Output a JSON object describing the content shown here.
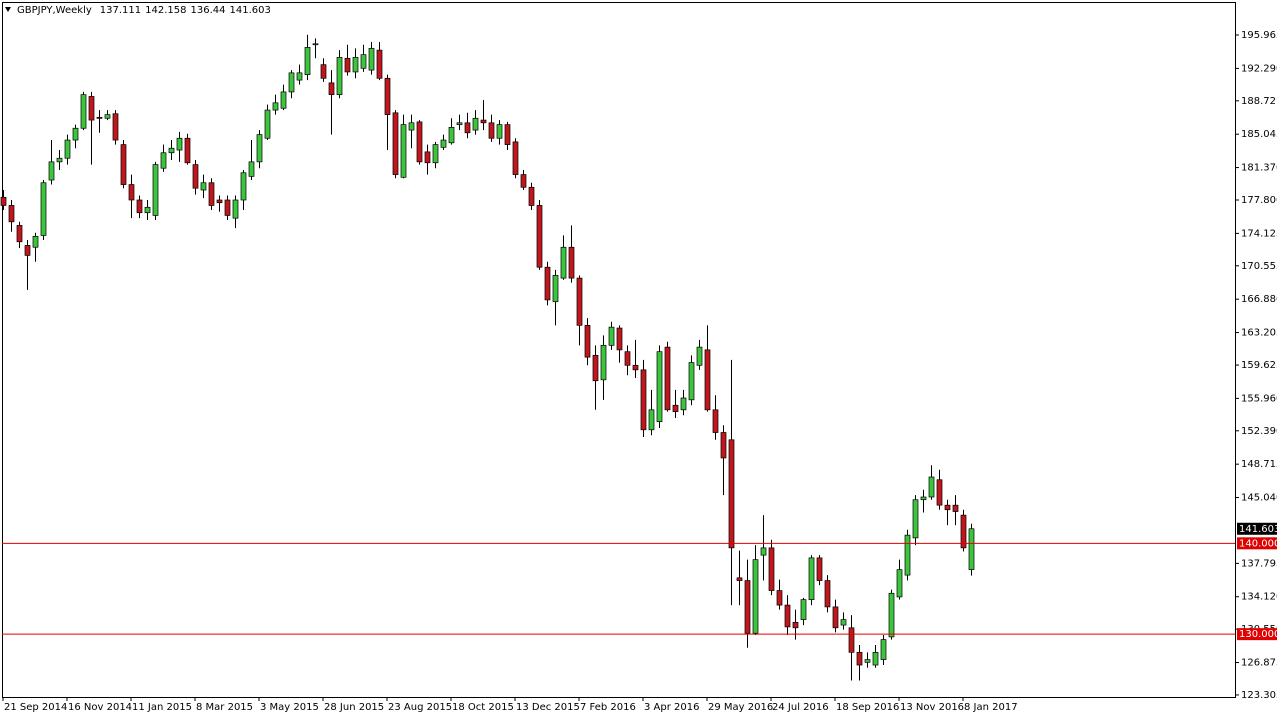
{
  "chart_data": {
    "type": "candlestick",
    "title": "GBPJPY,Weekly",
    "categories": [
      "21 Sep 2014",
      null,
      null,
      null,
      null,
      null,
      null,
      null,
      "16 Nov 2014",
      null,
      null,
      null,
      null,
      null,
      null,
      null,
      "11 Jan 2015",
      null,
      null,
      null,
      null,
      null,
      null,
      null,
      "8 Mar 2015",
      null,
      null,
      null,
      null,
      null,
      null,
      null,
      "3 May 2015",
      null,
      null,
      null,
      null,
      null,
      null,
      null,
      "28 Jun 2015",
      null,
      null,
      null,
      null,
      null,
      null,
      null,
      "23 Aug 2015",
      null,
      null,
      null,
      null,
      null,
      null,
      null,
      "18 Oct 2015",
      null,
      null,
      null,
      null,
      null,
      null,
      null,
      "13 Dec 2015",
      null,
      null,
      null,
      null,
      null,
      null,
      null,
      "7 Feb 2016",
      null,
      null,
      null,
      null,
      null,
      null,
      null,
      "3 Apr 2016",
      null,
      null,
      null,
      null,
      null,
      null,
      null,
      "29 May 2016",
      null,
      null,
      null,
      null,
      null,
      null,
      null,
      "24 Jul 2016",
      null,
      null,
      null,
      null,
      null,
      null,
      null,
      "18 Sep 2016",
      null,
      null,
      null,
      null,
      null,
      null,
      null,
      "13 Nov 2016",
      null,
      null,
      null,
      null,
      null,
      null,
      null,
      "8 Jan 2017",
      null
    ],
    "open": [
      178.1,
      177.2,
      175.0,
      172.8,
      172.6,
      173.9,
      180.0,
      182.0,
      182.4,
      184.4,
      185.7,
      189.2,
      186.9,
      186.8,
      187.3,
      183.9,
      179.5,
      177.8,
      176.4,
      176.1,
      181.3,
      183.0,
      183.3,
      184.6,
      181.7,
      178.9,
      179.7,
      177.8,
      177.8,
      175.8,
      177.8,
      180.4,
      182.0,
      184.6,
      187.7,
      187.9,
      189.7,
      191.0,
      191.6,
      194.9,
      192.7,
      190.7,
      189.4,
      193.4,
      191.9,
      192.3,
      192.1,
      194.3,
      191.2,
      187.4,
      180.3,
      185.5,
      186.4,
      183.1,
      181.9,
      183.6,
      184.1,
      186.1,
      186.3,
      185.5,
      186.6,
      186.3,
      184.6,
      186.1,
      184.2,
      180.6,
      179.2,
      177.2,
      170.4,
      166.6,
      169.2,
      172.6,
      169.2,
      164.0,
      160.7,
      158.0,
      161.8,
      163.7,
      161.1,
      159.6,
      159.1,
      152.5,
      153.4,
      161.6,
      155.2,
      154.7,
      155.8,
      159.6,
      161.3,
      154.7,
      152.2,
      151.4,
      136.2,
      135.9,
      130.1,
      138.7,
      139.5,
      134.8,
      133.2,
      131.3,
      131.6,
      133.8,
      138.4,
      135.9,
      133.0,
      131.0,
      130.7,
      128.0,
      126.9,
      126.6,
      127.2,
      129.7,
      134.1,
      136.5,
      140.6,
      144.8,
      145.1,
      147.0,
      144.2,
      144.2,
      143.1,
      137.111
    ],
    "high": [
      178.9,
      177.8,
      175.4,
      173.4,
      174.2,
      180.0,
      184.4,
      183.3,
      185.0,
      186.1,
      189.7,
      189.7,
      187.7,
      187.7,
      187.7,
      184.4,
      180.6,
      178.3,
      177.8,
      182.0,
      183.9,
      184.4,
      185.3,
      185.1,
      182.2,
      180.6,
      180.2,
      178.3,
      178.3,
      178.3,
      181.1,
      184.4,
      185.5,
      188.3,
      189.4,
      190.5,
      192.1,
      192.7,
      196.0,
      195.6,
      193.4,
      192.1,
      194.3,
      194.9,
      194.5,
      194.9,
      195.2,
      195.2,
      191.6,
      187.7,
      187.2,
      187.2,
      186.6,
      183.9,
      184.2,
      185.0,
      186.8,
      187.2,
      187.4,
      187.7,
      188.8,
      187.2,
      186.6,
      186.4,
      184.6,
      181.1,
      179.7,
      177.8,
      171.0,
      170.1,
      173.9,
      175.0,
      169.5,
      164.8,
      161.8,
      162.9,
      164.4,
      164.0,
      161.8,
      162.4,
      160.2,
      156.9,
      161.8,
      162.2,
      156.9,
      156.9,
      160.7,
      162.4,
      164.0,
      156.3,
      153.0,
      160.2,
      139.2,
      138.2,
      139.8,
      143.1,
      140.4,
      136.0,
      134.3,
      132.7,
      134.0,
      138.7,
      138.7,
      136.5,
      133.8,
      132.4,
      132.1,
      128.8,
      128.0,
      128.8,
      129.9,
      134.9,
      138.2,
      141.5,
      145.3,
      145.9,
      148.6,
      148.1,
      144.8,
      145.3,
      143.7,
      142.158
    ],
    "low": [
      176.7,
      174.3,
      172.5,
      167.9,
      171.0,
      173.4,
      179.5,
      181.1,
      181.7,
      183.5,
      185.5,
      181.7,
      185.2,
      186.6,
      183.9,
      179.1,
      175.8,
      175.8,
      175.6,
      175.6,
      180.9,
      182.2,
      182.0,
      181.7,
      178.4,
      178.0,
      176.7,
      176.5,
      175.6,
      174.7,
      176.7,
      180.0,
      181.3,
      184.4,
      187.2,
      187.7,
      189.0,
      190.5,
      191.0,
      193.4,
      190.8,
      185.0,
      189.0,
      191.5,
      191.2,
      191.9,
      191.6,
      191.0,
      183.3,
      180.2,
      180.2,
      183.5,
      181.7,
      180.6,
      181.3,
      183.3,
      183.9,
      185.5,
      184.6,
      185.0,
      185.5,
      184.2,
      183.9,
      183.3,
      180.2,
      178.9,
      176.7,
      170.1,
      166.2,
      164.0,
      169.0,
      168.7,
      161.8,
      159.6,
      154.7,
      155.8,
      161.3,
      159.9,
      158.5,
      158.2,
      151.7,
      151.9,
      152.7,
      154.5,
      153.8,
      154.1,
      155.2,
      159.1,
      154.5,
      151.4,
      145.3,
      133.2,
      133.2,
      128.5,
      129.9,
      135.9,
      134.3,
      132.7,
      129.9,
      129.4,
      131.0,
      133.2,
      135.4,
      132.4,
      130.2,
      130.5,
      124.9,
      124.9,
      126.3,
      126.3,
      126.6,
      129.4,
      133.8,
      135.9,
      139.8,
      143.4,
      144.8,
      143.7,
      142.0,
      142.0,
      139.1,
      136.44
    ],
    "close": [
      177.2,
      175.4,
      173.2,
      171.7,
      173.8,
      179.7,
      182.0,
      182.4,
      184.4,
      185.7,
      189.4,
      186.6,
      186.8,
      187.2,
      184.4,
      179.5,
      177.8,
      176.4,
      177.0,
      181.7,
      183.0,
      183.5,
      184.6,
      181.9,
      179.1,
      179.7,
      177.2,
      177.5,
      176.1,
      177.8,
      180.8,
      182.0,
      185.0,
      187.7,
      188.5,
      189.7,
      191.8,
      191.8,
      194.6,
      195.0,
      191.2,
      189.4,
      193.5,
      191.9,
      193.5,
      193.8,
      194.5,
      191.2,
      187.2,
      180.6,
      186.1,
      186.3,
      182.0,
      181.9,
      183.9,
      184.4,
      185.8,
      186.3,
      185.2,
      186.8,
      186.3,
      184.6,
      186.1,
      183.9,
      180.6,
      179.2,
      177.2,
      170.4,
      166.8,
      169.5,
      172.6,
      169.2,
      164.0,
      160.5,
      157.9,
      161.8,
      163.8,
      161.3,
      159.6,
      159.1,
      152.5,
      154.7,
      161.1,
      154.7,
      154.5,
      156.0,
      159.9,
      161.6,
      154.7,
      152.2,
      149.4,
      139.5,
      135.9,
      130.1,
      138.2,
      139.5,
      134.8,
      133.2,
      130.8,
      130.7,
      133.8,
      138.4,
      135.9,
      133.0,
      130.7,
      131.6,
      128.0,
      126.6,
      127.2,
      128.0,
      129.4,
      134.5,
      137.1,
      140.9,
      144.8,
      145.1,
      147.3,
      144.2,
      143.7,
      143.5,
      139.5,
      141.603
    ],
    "up_color": "#3cc43c",
    "down_color": "#c0161e",
    "wick_color": "#000000",
    "ylim": [
      123.08,
      199.6
    ],
    "yticks": [
      195.965,
      {
        "value": 192.29,
        "label": "192.290"
      },
      188.72,
      185.045,
      {
        "value": 181.37,
        "label": "181.370"
      },
      {
        "value": 177.8,
        "label": "177.800"
      },
      174.125,
      170.555,
      {
        "value": 166.88,
        "label": "166.880"
      },
      163.205,
      159.625,
      {
        "value": 155.96,
        "label": "155.960"
      },
      {
        "value": 152.39,
        "label": "152.390"
      },
      148.715,
      {
        "value": 145.04,
        "label": "145.040"
      },
      137.795,
      {
        "value": 134.12,
        "label": "134.120"
      },
      {
        "value": 130.55,
        "label": "130.550"
      },
      126.875,
      123.305
    ],
    "hlines": [
      {
        "value": 140,
        "label": "140.000"
      },
      {
        "value": 130,
        "label": "130.000"
      }
    ],
    "hline_color": "#e00000"
  }
}
